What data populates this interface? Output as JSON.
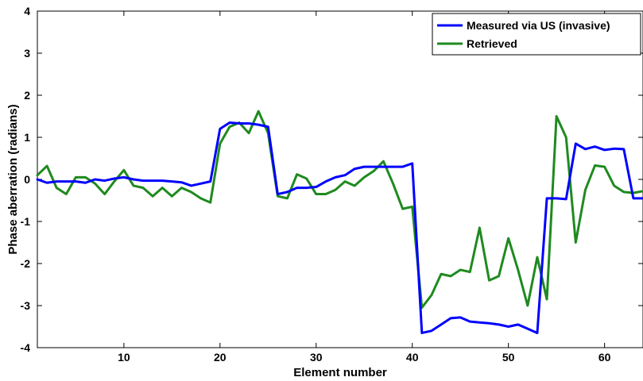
{
  "chart_data": {
    "type": "line",
    "xlabel": "Element number",
    "ylabel": "Phase aberration (radians)",
    "xlim": [
      1,
      64
    ],
    "ylim": [
      -4,
      4
    ],
    "xticks": [
      10,
      20,
      30,
      40,
      50,
      60
    ],
    "yticks": [
      -4,
      -3,
      -2,
      -1,
      0,
      1,
      2,
      3,
      4
    ],
    "grid": false,
    "legend_position": "top-right",
    "x": [
      1,
      2,
      3,
      4,
      5,
      6,
      7,
      8,
      9,
      10,
      11,
      12,
      13,
      14,
      15,
      16,
      17,
      18,
      19,
      20,
      21,
      22,
      23,
      24,
      25,
      26,
      27,
      28,
      29,
      30,
      31,
      32,
      33,
      34,
      35,
      36,
      37,
      38,
      39,
      40,
      41,
      42,
      43,
      44,
      45,
      46,
      47,
      48,
      49,
      50,
      51,
      52,
      53,
      54,
      55,
      56,
      57,
      58,
      59,
      60,
      61,
      62,
      63,
      64
    ],
    "series": [
      {
        "name": "Measured via US (invasive)",
        "color": "#0000ff",
        "values": [
          0.0,
          -0.08,
          -0.05,
          -0.05,
          -0.05,
          -0.08,
          0.0,
          -0.03,
          0.02,
          0.05,
          0.0,
          -0.03,
          -0.03,
          -0.03,
          -0.05,
          -0.07,
          -0.15,
          -0.1,
          -0.05,
          1.2,
          1.35,
          1.33,
          1.33,
          1.3,
          1.25,
          -0.35,
          -0.3,
          -0.2,
          -0.2,
          -0.18,
          -0.05,
          0.05,
          0.1,
          0.25,
          0.3,
          0.3,
          0.3,
          0.3,
          0.3,
          0.38,
          -3.65,
          -3.6,
          -3.45,
          -3.3,
          -3.28,
          -3.38,
          -3.4,
          -3.42,
          -3.45,
          -3.5,
          -3.45,
          -3.55,
          -3.65,
          -0.45,
          -0.45,
          -0.47,
          0.85,
          0.72,
          0.78,
          0.7,
          0.73,
          0.72,
          -0.45,
          -0.45
        ]
      },
      {
        "name": "Retrieved",
        "color": "#1f8a1f",
        "values": [
          0.1,
          0.32,
          -0.2,
          -0.35,
          0.05,
          0.05,
          -0.1,
          -0.35,
          -0.05,
          0.22,
          -0.15,
          -0.2,
          -0.4,
          -0.2,
          -0.4,
          -0.2,
          -0.3,
          -0.45,
          -0.55,
          0.85,
          1.25,
          1.35,
          1.1,
          1.62,
          1.1,
          -0.4,
          -0.45,
          0.12,
          0.02,
          -0.35,
          -0.35,
          -0.25,
          -0.05,
          -0.15,
          0.05,
          0.2,
          0.43,
          -0.1,
          -0.7,
          -0.65,
          -3.05,
          -2.75,
          -2.25,
          -2.3,
          -2.15,
          -2.2,
          -1.15,
          -2.4,
          -2.3,
          -1.4,
          -2.15,
          -3.0,
          -1.85,
          -2.85,
          1.5,
          1.0,
          -1.5,
          -0.25,
          0.33,
          0.3,
          -0.15,
          -0.3,
          -0.32,
          -0.28
        ]
      }
    ]
  }
}
